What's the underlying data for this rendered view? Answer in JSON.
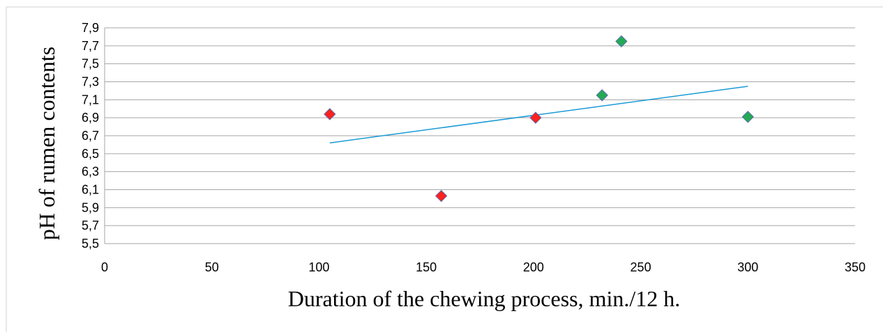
{
  "chart_data": {
    "type": "scatter",
    "title": "",
    "xlabel": "Duration of the chewing process, min./12 h.",
    "ylabel": "pH of rumen contents",
    "xlim": [
      0,
      350
    ],
    "ylim": [
      5.5,
      7.9
    ],
    "x_ticks": [
      0,
      50,
      100,
      150,
      200,
      250,
      300,
      350
    ],
    "x_tick_labels": [
      "0",
      "50",
      "100",
      "150",
      "200",
      "250",
      "300",
      "350"
    ],
    "y_ticks": [
      5.5,
      5.7,
      5.9,
      6.1,
      6.3,
      6.5,
      6.7,
      6.9,
      7.1,
      7.3,
      7.5,
      7.7,
      7.9
    ],
    "y_tick_labels": [
      "5,5",
      "5,7",
      "5,9",
      "6,1",
      "6,3",
      "6,5",
      "6,7",
      "6,9",
      "7,1",
      "7,3",
      "7,5",
      "7,7",
      "7,9"
    ],
    "grid": "horizontal",
    "legend": "none",
    "series": [
      {
        "color": "#ff2020",
        "marker": "diamond",
        "points": [
          [
            105,
            6.94
          ],
          [
            157,
            6.03
          ],
          [
            201,
            6.9
          ]
        ]
      },
      {
        "color": "#22aa55",
        "marker": "diamond",
        "points": [
          [
            232,
            7.15
          ],
          [
            241,
            7.75
          ],
          [
            300,
            6.91
          ]
        ]
      }
    ],
    "trendline": {
      "color": "#1a9ad6",
      "x": [
        105,
        300
      ],
      "y": [
        6.62,
        7.25
      ]
    }
  }
}
